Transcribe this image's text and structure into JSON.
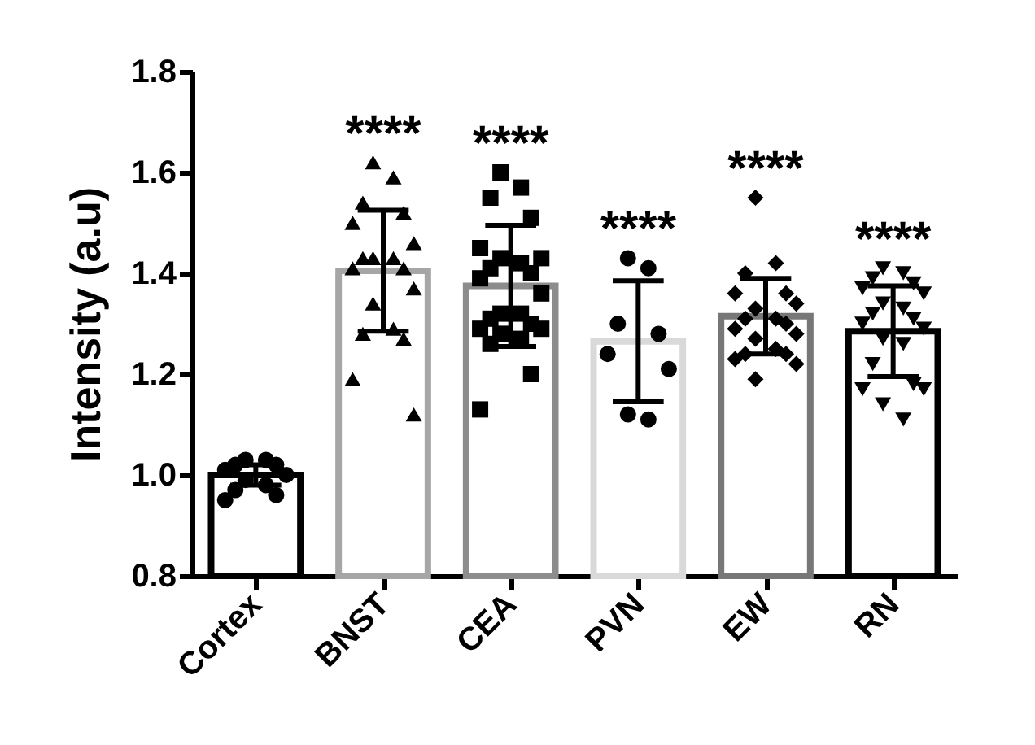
{
  "chart_data": {
    "type": "bar",
    "ylabel": "Intensity (a.u)",
    "categories": [
      "Cortex",
      "BNST",
      "CEA",
      "PVN",
      "EW",
      "RN"
    ],
    "ylim": [
      0.8,
      1.8
    ],
    "yticks": [
      0.8,
      {
        "value": 1,
        "label": "1.0"
      },
      1.2,
      1.4,
      1.6,
      1.8
    ],
    "grid": false,
    "legend": false,
    "series": [
      {
        "values": [
          1.0,
          1.405,
          1.375,
          1.265,
          1.315,
          1.285
        ],
        "errors": [
          0.02,
          0.12,
          0.12,
          0.12,
          0.075,
          0.09
        ],
        "colors": [
          "#000000",
          "#a6a6a6",
          "#8c8c8c",
          "#d9d9d9",
          "#777777",
          "#000000"
        ]
      },
      {
        "type": "scatter",
        "marker": "circle",
        "color": "#000000",
        "x": [
          "Cortex",
          "Cortex",
          "Cortex",
          "Cortex",
          "Cortex",
          "Cortex",
          "Cortex",
          "Cortex",
          "Cortex",
          "Cortex",
          "Cortex"
        ],
        "values": [
          1.03,
          1.03,
          1.02,
          1.02,
          1.01,
          1.0,
          0.99,
          0.98,
          0.97,
          0.96,
          0.95
        ]
      },
      {
        "type": "scatter",
        "marker": "triangle",
        "color": "#000000",
        "x": [
          "BNST",
          "BNST",
          "BNST",
          "BNST",
          "BNST",
          "BNST",
          "BNST",
          "BNST",
          "BNST",
          "BNST",
          "BNST",
          "BNST",
          "BNST",
          "BNST",
          "BNST",
          "BNST",
          "BNST",
          "BNST"
        ],
        "values": [
          1.62,
          1.59,
          1.54,
          1.52,
          1.5,
          1.46,
          1.43,
          1.43,
          1.43,
          1.41,
          1.41,
          1.37,
          1.34,
          1.29,
          1.28,
          1.27,
          1.19,
          1.12
        ]
      },
      {
        "type": "scatter",
        "marker": "square",
        "color": "#000000",
        "x": [
          "CEA",
          "CEA",
          "CEA",
          "CEA",
          "CEA",
          "CEA",
          "CEA",
          "CEA",
          "CEA",
          "CEA",
          "CEA",
          "CEA",
          "CEA",
          "CEA",
          "CEA",
          "CEA",
          "CEA",
          "CEA",
          "CEA",
          "CEA",
          "CEA",
          "CEA",
          "CEA"
        ],
        "values": [
          1.6,
          1.57,
          1.55,
          1.51,
          1.45,
          1.43,
          1.43,
          1.42,
          1.41,
          1.4,
          1.39,
          1.36,
          1.32,
          1.32,
          1.31,
          1.3,
          1.29,
          1.29,
          1.28,
          1.27,
          1.26,
          1.2,
          1.13
        ]
      },
      {
        "type": "scatter",
        "marker": "circle",
        "color": "#000000",
        "x": [
          "PVN",
          "PVN",
          "PVN",
          "PVN",
          "PVN",
          "PVN",
          "PVN",
          "PVN"
        ],
        "values": [
          1.43,
          1.41,
          1.3,
          1.28,
          1.24,
          1.21,
          1.12,
          1.11
        ]
      },
      {
        "type": "scatter",
        "marker": "diamond",
        "color": "#000000",
        "x": [
          "EW",
          "EW",
          "EW",
          "EW",
          "EW",
          "EW",
          "EW",
          "EW",
          "EW",
          "EW",
          "EW",
          "EW",
          "EW",
          "EW",
          "EW",
          "EW",
          "EW",
          "EW",
          "EW"
        ],
        "values": [
          1.55,
          1.42,
          1.4,
          1.36,
          1.36,
          1.34,
          1.33,
          1.31,
          1.31,
          1.3,
          1.29,
          1.28,
          1.27,
          1.25,
          1.24,
          1.24,
          1.23,
          1.22,
          1.19
        ]
      },
      {
        "type": "scatter",
        "marker": "triangle-down",
        "color": "#000000",
        "x": [
          "RN",
          "RN",
          "RN",
          "RN",
          "RN",
          "RN",
          "RN",
          "RN",
          "RN",
          "RN",
          "RN",
          "RN",
          "RN",
          "RN",
          "RN",
          "RN",
          "RN",
          "RN",
          "RN",
          "RN"
        ],
        "values": [
          1.41,
          1.4,
          1.39,
          1.38,
          1.37,
          1.36,
          1.34,
          1.33,
          1.32,
          1.31,
          1.3,
          1.29,
          1.27,
          1.26,
          1.22,
          1.18,
          1.17,
          1.17,
          1.14,
          1.11
        ]
      }
    ],
    "annotations": [
      "****",
      "****",
      "****",
      "****",
      "****"
    ]
  }
}
